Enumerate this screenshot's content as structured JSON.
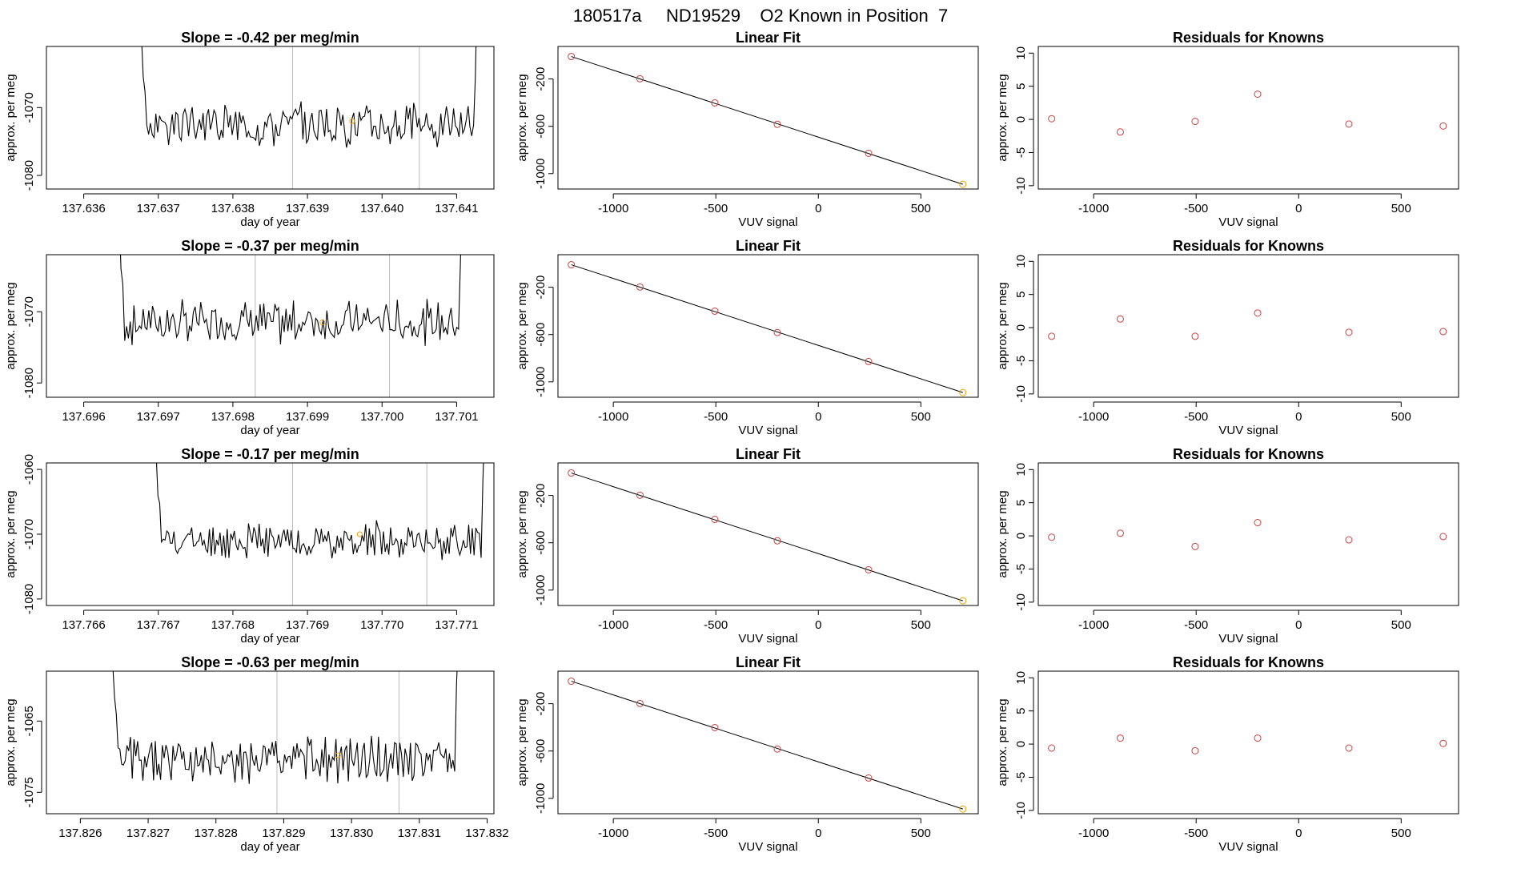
{
  "figure": {
    "title": "180517a     ND19529    O2 Known in Position  7"
  },
  "colors": {
    "ink": "#000000",
    "known_point": "#D04040",
    "highlight_point": "#F0A000",
    "vline": "#BBBBBB"
  },
  "chart_data": [
    {
      "type": "line",
      "panel": "timeseries-1",
      "title": "Slope =  -0.42  per meg/min",
      "xlabel": "day of year",
      "ylabel": "approx. per meg",
      "xlim": [
        137.6355,
        137.6415
      ],
      "ylim": [
        -1082,
        -1061
      ],
      "xticks": [
        137.636,
        137.637,
        137.638,
        137.639,
        137.64,
        137.641
      ],
      "xtick_labels": [
        "137.636",
        "137.637",
        "137.638",
        "137.639",
        "137.640",
        "137.641"
      ],
      "yticks": [
        -1080,
        -1070
      ],
      "ytick_labels": [
        "-1080",
        "-1070"
      ],
      "vlines": [
        137.6388,
        137.6405
      ],
      "segment": {
        "x_start": 137.6367,
        "x_end": 137.6413,
        "n": 190,
        "base": -1072.5,
        "amp": 2.6,
        "seed": 3
      },
      "highlight_point": {
        "x": 137.6396,
        "y": -1072.0
      }
    },
    {
      "type": "line",
      "panel": "timeseries-2",
      "title": "Slope =  -0.37  per meg/min",
      "xlabel": "day of year",
      "ylabel": "approx. per meg",
      "xlim": [
        137.6955,
        137.7015
      ],
      "ylim": [
        -1082,
        -1062
      ],
      "xticks": [
        137.696,
        137.697,
        137.698,
        137.699,
        137.7,
        137.701
      ],
      "xtick_labels": [
        "137.696",
        "137.697",
        "137.698",
        "137.699",
        "137.700",
        "137.701"
      ],
      "yticks": [
        -1080,
        -1070
      ],
      "ytick_labels": [
        "-1080",
        "-1070"
      ],
      "vlines": [
        137.6983,
        137.7001
      ],
      "segment": {
        "x_start": 137.6964,
        "x_end": 137.7011,
        "n": 190,
        "base": -1071.5,
        "amp": 2.4,
        "seed": 7
      },
      "highlight_point": {
        "x": 137.6992,
        "y": -1071.5
      }
    },
    {
      "type": "line",
      "panel": "timeseries-3",
      "title": "Slope =  -0.17  per meg/min",
      "xlabel": "day of year",
      "ylabel": "approx. per meg",
      "xlim": [
        137.7655,
        137.7715
      ],
      "ylim": [
        -1081,
        -1059
      ],
      "xticks": [
        137.766,
        137.767,
        137.768,
        137.769,
        137.77,
        137.771
      ],
      "xtick_labels": [
        "137.766",
        "137.767",
        "137.768",
        "137.769",
        "137.770",
        "137.771"
      ],
      "yticks": [
        -1080,
        -1070,
        -1060
      ],
      "ytick_labels": [
        "-1080",
        "-1070",
        "-1060"
      ],
      "vlines": [
        137.7688,
        137.7706
      ],
      "segment": {
        "x_start": 137.7669,
        "x_end": 137.7714,
        "n": 190,
        "base": -1071.0,
        "amp": 2.2,
        "seed": 11
      },
      "highlight_point": {
        "x": 137.7697,
        "y": -1070.0
      }
    },
    {
      "type": "line",
      "panel": "timeseries-4",
      "title": "Slope =  -0.63  per meg/min",
      "xlabel": "day of year",
      "ylabel": "approx. per meg",
      "xlim": [
        137.8255,
        137.8321
      ],
      "ylim": [
        -1078,
        -1058
      ],
      "xticks": [
        137.826,
        137.827,
        137.828,
        137.829,
        137.83,
        137.831,
        137.832
      ],
      "xtick_labels": [
        "137.826",
        "137.827",
        "137.828",
        "137.829",
        "137.830",
        "137.831",
        "137.832"
      ],
      "yticks": [
        -1075,
        -1065
      ],
      "ytick_labels": [
        "-1075",
        "-1065"
      ],
      "vlines": [
        137.8289,
        137.8307
      ],
      "segment": {
        "x_start": 137.8264,
        "x_end": 137.8316,
        "n": 200,
        "base": -1070.5,
        "amp": 2.6,
        "seed": 5
      },
      "highlight_point": {
        "x": 137.8298,
        "y": -1069.8
      }
    },
    {
      "type": "scatter",
      "panel": "linear-fit-1",
      "title": "Linear Fit",
      "xlabel": "VUV signal",
      "ylabel": "approx. per meg",
      "xlim": [
        -1270,
        780
      ],
      "ylim": [
        -1130,
        75
      ],
      "xticks": [
        -1000,
        -500,
        0,
        500
      ],
      "xtick_labels": [
        "-1000",
        "-500",
        "0",
        "500"
      ],
      "yticks": [
        -1000,
        -600,
        -200
      ],
      "ytick_labels": [
        "-1000",
        "-600",
        "-200"
      ],
      "x": [
        -1205,
        -870,
        -505,
        -200,
        245,
        705
      ],
      "y": [
        -10,
        -198,
        -402,
        -583,
        -828,
        -1090
      ],
      "fit_line": {
        "x": [
          -1205,
          705
        ],
        "y": [
          -10,
          -1090
        ]
      },
      "highlight_index": 5
    },
    {
      "type": "scatter",
      "panel": "linear-fit-2",
      "title": "Linear Fit",
      "xlabel": "VUV signal",
      "ylabel": "approx. per meg",
      "xlim": [
        -1270,
        780
      ],
      "ylim": [
        -1130,
        75
      ],
      "xticks": [
        -1000,
        -500,
        0,
        500
      ],
      "xtick_labels": [
        "-1000",
        "-500",
        "0",
        "500"
      ],
      "yticks": [
        -1000,
        -600,
        -200
      ],
      "ytick_labels": [
        "-1000",
        "-600",
        "-200"
      ],
      "x": [
        -1205,
        -870,
        -505,
        -200,
        245,
        705
      ],
      "y": [
        -10,
        -198,
        -402,
        -583,
        -828,
        -1090
      ],
      "fit_line": {
        "x": [
          -1205,
          705
        ],
        "y": [
          -10,
          -1090
        ]
      },
      "highlight_index": 5
    },
    {
      "type": "scatter",
      "panel": "linear-fit-3",
      "title": "Linear Fit",
      "xlabel": "VUV signal",
      "ylabel": "approx. per meg",
      "xlim": [
        -1270,
        780
      ],
      "ylim": [
        -1130,
        75
      ],
      "xticks": [
        -1000,
        -500,
        0,
        500
      ],
      "xtick_labels": [
        "-1000",
        "-500",
        "0",
        "500"
      ],
      "yticks": [
        -1000,
        -600,
        -200
      ],
      "ytick_labels": [
        "-1000",
        "-600",
        "-200"
      ],
      "x": [
        -1205,
        -870,
        -505,
        -200,
        245,
        705
      ],
      "y": [
        -10,
        -198,
        -402,
        -583,
        -828,
        -1090
      ],
      "fit_line": {
        "x": [
          -1205,
          705
        ],
        "y": [
          -10,
          -1090
        ]
      },
      "highlight_index": 5
    },
    {
      "type": "scatter",
      "panel": "linear-fit-4",
      "title": "Linear Fit",
      "xlabel": "VUV signal",
      "ylabel": "approx. per meg",
      "xlim": [
        -1270,
        780
      ],
      "ylim": [
        -1130,
        75
      ],
      "xticks": [
        -1000,
        -500,
        0,
        500
      ],
      "xtick_labels": [
        "-1000",
        "-500",
        "0",
        "500"
      ],
      "yticks": [
        -1000,
        -600,
        -200
      ],
      "ytick_labels": [
        "-1000",
        "-600",
        "-200"
      ],
      "x": [
        -1205,
        -870,
        -505,
        -200,
        245,
        705
      ],
      "y": [
        -10,
        -198,
        -402,
        -583,
        -828,
        -1090
      ],
      "fit_line": {
        "x": [
          -1205,
          705
        ],
        "y": [
          -10,
          -1090
        ]
      },
      "highlight_index": 5
    },
    {
      "type": "scatter",
      "panel": "residuals-1",
      "title": "Residuals for Knowns",
      "xlabel": "VUV signal",
      "ylabel": "approx. per meg",
      "xlim": [
        -1270,
        780
      ],
      "ylim": [
        -10.5,
        11
      ],
      "xticks": [
        -1000,
        -500,
        0,
        500
      ],
      "xtick_labels": [
        "-1000",
        "-500",
        "0",
        "500"
      ],
      "yticks": [
        -10,
        -5,
        0,
        5,
        10
      ],
      "ytick_labels": [
        "-10",
        "-5",
        "0",
        "5",
        "10"
      ],
      "x": [
        -1205,
        -870,
        -505,
        -200,
        245,
        705
      ],
      "y": [
        0.1,
        -1.9,
        -0.3,
        3.8,
        -0.7,
        -1.0
      ]
    },
    {
      "type": "scatter",
      "panel": "residuals-2",
      "title": "Residuals for Knowns",
      "xlabel": "VUV signal",
      "ylabel": "approx. per meg",
      "xlim": [
        -1270,
        780
      ],
      "ylim": [
        -10.5,
        11
      ],
      "xticks": [
        -1000,
        -500,
        0,
        500
      ],
      "xtick_labels": [
        "-1000",
        "-500",
        "0",
        "500"
      ],
      "yticks": [
        -10,
        -5,
        0,
        5,
        10
      ],
      "ytick_labels": [
        "-10",
        "-5",
        "0",
        "5",
        "10"
      ],
      "x": [
        -1205,
        -870,
        -505,
        -200,
        245,
        705
      ],
      "y": [
        -1.3,
        1.3,
        -1.3,
        2.2,
        -0.7,
        -0.6
      ]
    },
    {
      "type": "scatter",
      "panel": "residuals-3",
      "title": "Residuals for Knowns",
      "xlabel": "VUV signal",
      "ylabel": "approx. per meg",
      "xlim": [
        -1270,
        780
      ],
      "ylim": [
        -10.5,
        11
      ],
      "xticks": [
        -1000,
        -500,
        0,
        500
      ],
      "xtick_labels": [
        "-1000",
        "-500",
        "0",
        "500"
      ],
      "yticks": [
        -10,
        -5,
        0,
        5,
        10
      ],
      "ytick_labels": [
        "-10",
        "-5",
        "0",
        "5",
        "10"
      ],
      "x": [
        -1205,
        -870,
        -505,
        -200,
        245,
        705
      ],
      "y": [
        -0.2,
        0.4,
        -1.6,
        2.0,
        -0.6,
        -0.1
      ]
    },
    {
      "type": "scatter",
      "panel": "residuals-4",
      "title": "Residuals for Knowns",
      "xlabel": "VUV signal",
      "ylabel": "approx. per meg",
      "xlim": [
        -1270,
        780
      ],
      "ylim": [
        -10.5,
        11
      ],
      "xticks": [
        -1000,
        -500,
        0,
        500
      ],
      "xtick_labels": [
        "-1000",
        "-500",
        "0",
        "500"
      ],
      "yticks": [
        -10,
        -5,
        0,
        5,
        10
      ],
      "ytick_labels": [
        "-10",
        "-5",
        "0",
        "5",
        "10"
      ],
      "x": [
        -1205,
        -870,
        -505,
        -200,
        245,
        705
      ],
      "y": [
        -0.6,
        0.9,
        -1.0,
        0.9,
        -0.6,
        0.1
      ]
    }
  ]
}
